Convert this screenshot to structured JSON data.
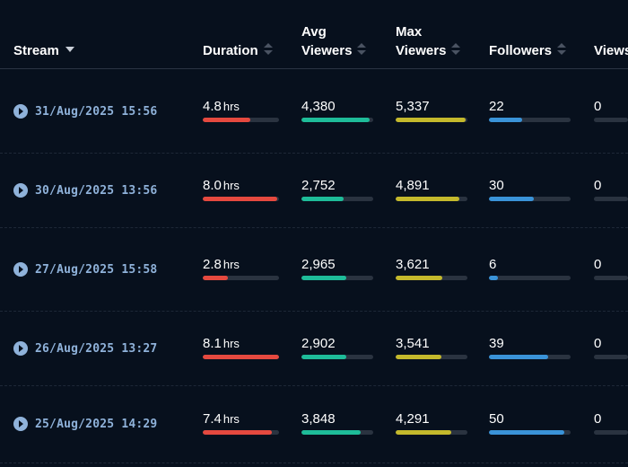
{
  "colors": {
    "duration": "#e5493f",
    "avg_viewers": "#1ebc99",
    "max_viewers": "#c4b92c",
    "followers": "#3a93d8",
    "link": "#8fb2da"
  },
  "headers": {
    "stream": "Stream",
    "duration": "Duration",
    "avg_viewers_1": "Avg",
    "avg_viewers_2": "Viewers",
    "max_viewers_1": "Max",
    "max_viewers_2": "Viewers",
    "followers": "Followers",
    "views": "Views"
  },
  "unit_hrs": "hrs",
  "rows": [
    {
      "stream": "31/Aug/2025 15:56",
      "duration": "4.8",
      "duration_fill": 0.62,
      "avg_viewers": "4,380",
      "avg_fill": 0.95,
      "max_viewers": "5,337",
      "max_fill": 0.97,
      "followers": "22",
      "followers_fill": 0.41,
      "views": "0"
    },
    {
      "stream": "30/Aug/2025 13:56",
      "duration": "8.0",
      "duration_fill": 0.98,
      "avg_viewers": "2,752",
      "avg_fill": 0.59,
      "max_viewers": "4,891",
      "max_fill": 0.89,
      "followers": "30",
      "followers_fill": 0.55,
      "views": "0"
    },
    {
      "stream": "27/Aug/2025 15:58",
      "duration": "2.8",
      "duration_fill": 0.33,
      "avg_viewers": "2,965",
      "avg_fill": 0.63,
      "max_viewers": "3,621",
      "max_fill": 0.65,
      "followers": "6",
      "followers_fill": 0.11,
      "views": "0"
    },
    {
      "stream": "26/Aug/2025 13:27",
      "duration": "8.1",
      "duration_fill": 1.0,
      "avg_viewers": "2,902",
      "avg_fill": 0.62,
      "max_viewers": "3,541",
      "max_fill": 0.64,
      "followers": "39",
      "followers_fill": 0.73,
      "views": "0"
    },
    {
      "stream": "25/Aug/2025 14:29",
      "duration": "7.4",
      "duration_fill": 0.9,
      "avg_viewers": "3,848",
      "avg_fill": 0.82,
      "max_viewers": "4,291",
      "max_fill": 0.78,
      "followers": "50",
      "followers_fill": 0.92,
      "views": "0"
    }
  ]
}
